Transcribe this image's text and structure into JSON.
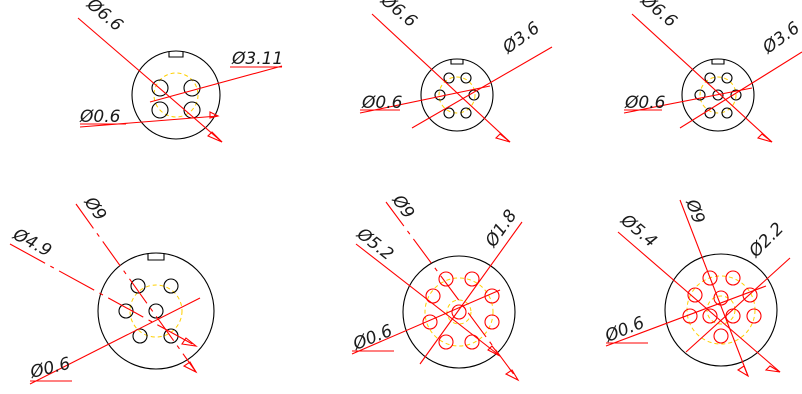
{
  "colors": {
    "outline": "#000000",
    "dimension": "#ff0000",
    "pitch_circle": "#ffd000",
    "pin_red": "#ff0000",
    "pin_black": "#000000",
    "text": "#1a1a1a"
  },
  "connectors": [
    {
      "id": "c1",
      "pins": 4,
      "pin_color": "pin_black",
      "labels": {
        "outer": "Ø6.6",
        "pcd": "Ø3.11",
        "pin": "Ø0.6"
      }
    },
    {
      "id": "c2",
      "pins": 6,
      "pin_color": "pin_black",
      "labels": {
        "outer": "Ø6.6",
        "pcd": "Ø3.6",
        "pin": "Ø0.6"
      }
    },
    {
      "id": "c3",
      "pins": 7,
      "pin_color": "pin_black",
      "labels": {
        "outer": "Ø6.6",
        "pcd": "Ø3.6",
        "pin": "Ø0.6"
      }
    },
    {
      "id": "c4",
      "pins": 6,
      "pin_color": "pin_black",
      "labels": {
        "outer": "Ø9",
        "pcd": "Ø4.9",
        "pin": "Ø0.6"
      }
    },
    {
      "id": "c5",
      "pins": 9,
      "pin_color": "pin_red",
      "labels": {
        "outer": "Ø9",
        "pcd_outer": "Ø5.2",
        "pcd_inner": "Ø1.8",
        "pin": "Ø0.6"
      }
    },
    {
      "id": "c6",
      "pins": 10,
      "pin_color": "pin_red",
      "labels": {
        "outer": "Ø9",
        "pcd_outer": "Ø5.4",
        "pcd_inner": "Ø2.2",
        "pin": "Ø0.6"
      }
    }
  ]
}
